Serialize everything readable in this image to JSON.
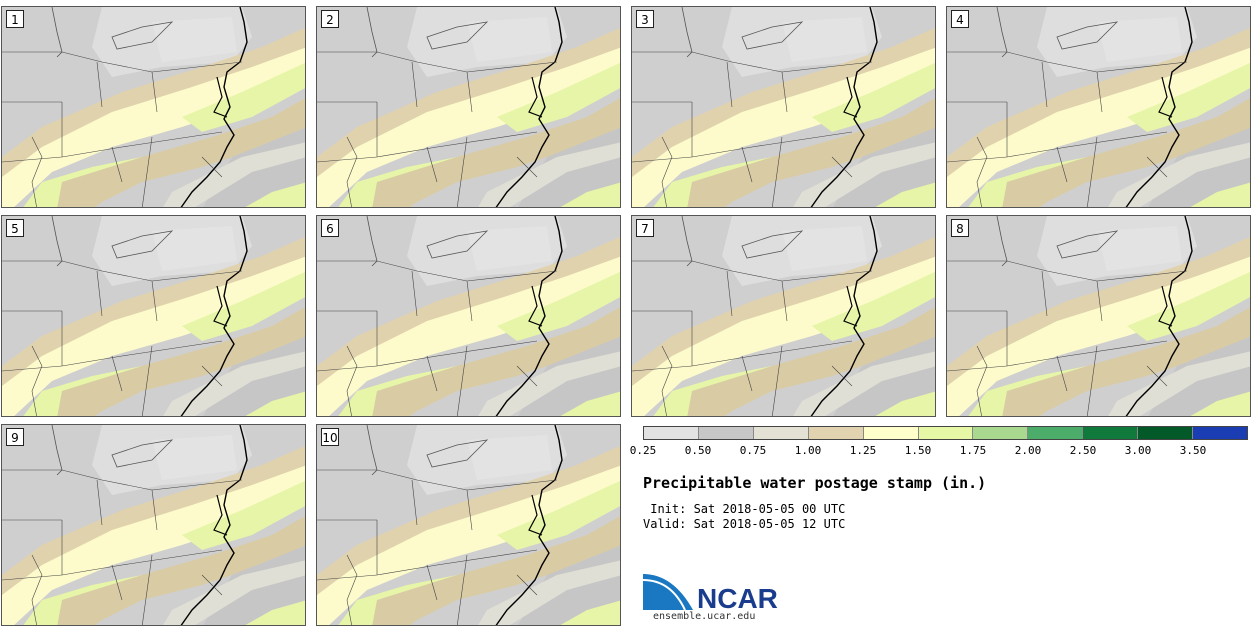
{
  "panels": [
    {
      "label": "1"
    },
    {
      "label": "2"
    },
    {
      "label": "3"
    },
    {
      "label": "4"
    },
    {
      "label": "5"
    },
    {
      "label": "6"
    },
    {
      "label": "7"
    },
    {
      "label": "8"
    },
    {
      "label": "9"
    },
    {
      "label": "10"
    }
  ],
  "colorbar": {
    "ticks": [
      "0.25",
      "0.50",
      "0.75",
      "1.00",
      "1.25",
      "1.50",
      "1.75",
      "2.00",
      "2.50",
      "3.00",
      "3.50"
    ],
    "colors": [
      "#e2e2e2",
      "#c7c7c7",
      "#e3e2d5",
      "#e2d3b0",
      "#ffffcc",
      "#e6f7a6",
      "#a8d98f",
      "#4cac6a",
      "#0f7a3b",
      "#035a28",
      "#1a3db3"
    ]
  },
  "title": "Precipitable water postage stamp (in.)",
  "init": " Init: Sat 2018-05-05 00 UTC",
  "valid": "Valid: Sat 2018-05-05 12 UTC",
  "logo": {
    "text": "NCAR",
    "url": "ensemble.ucar.edu"
  }
}
